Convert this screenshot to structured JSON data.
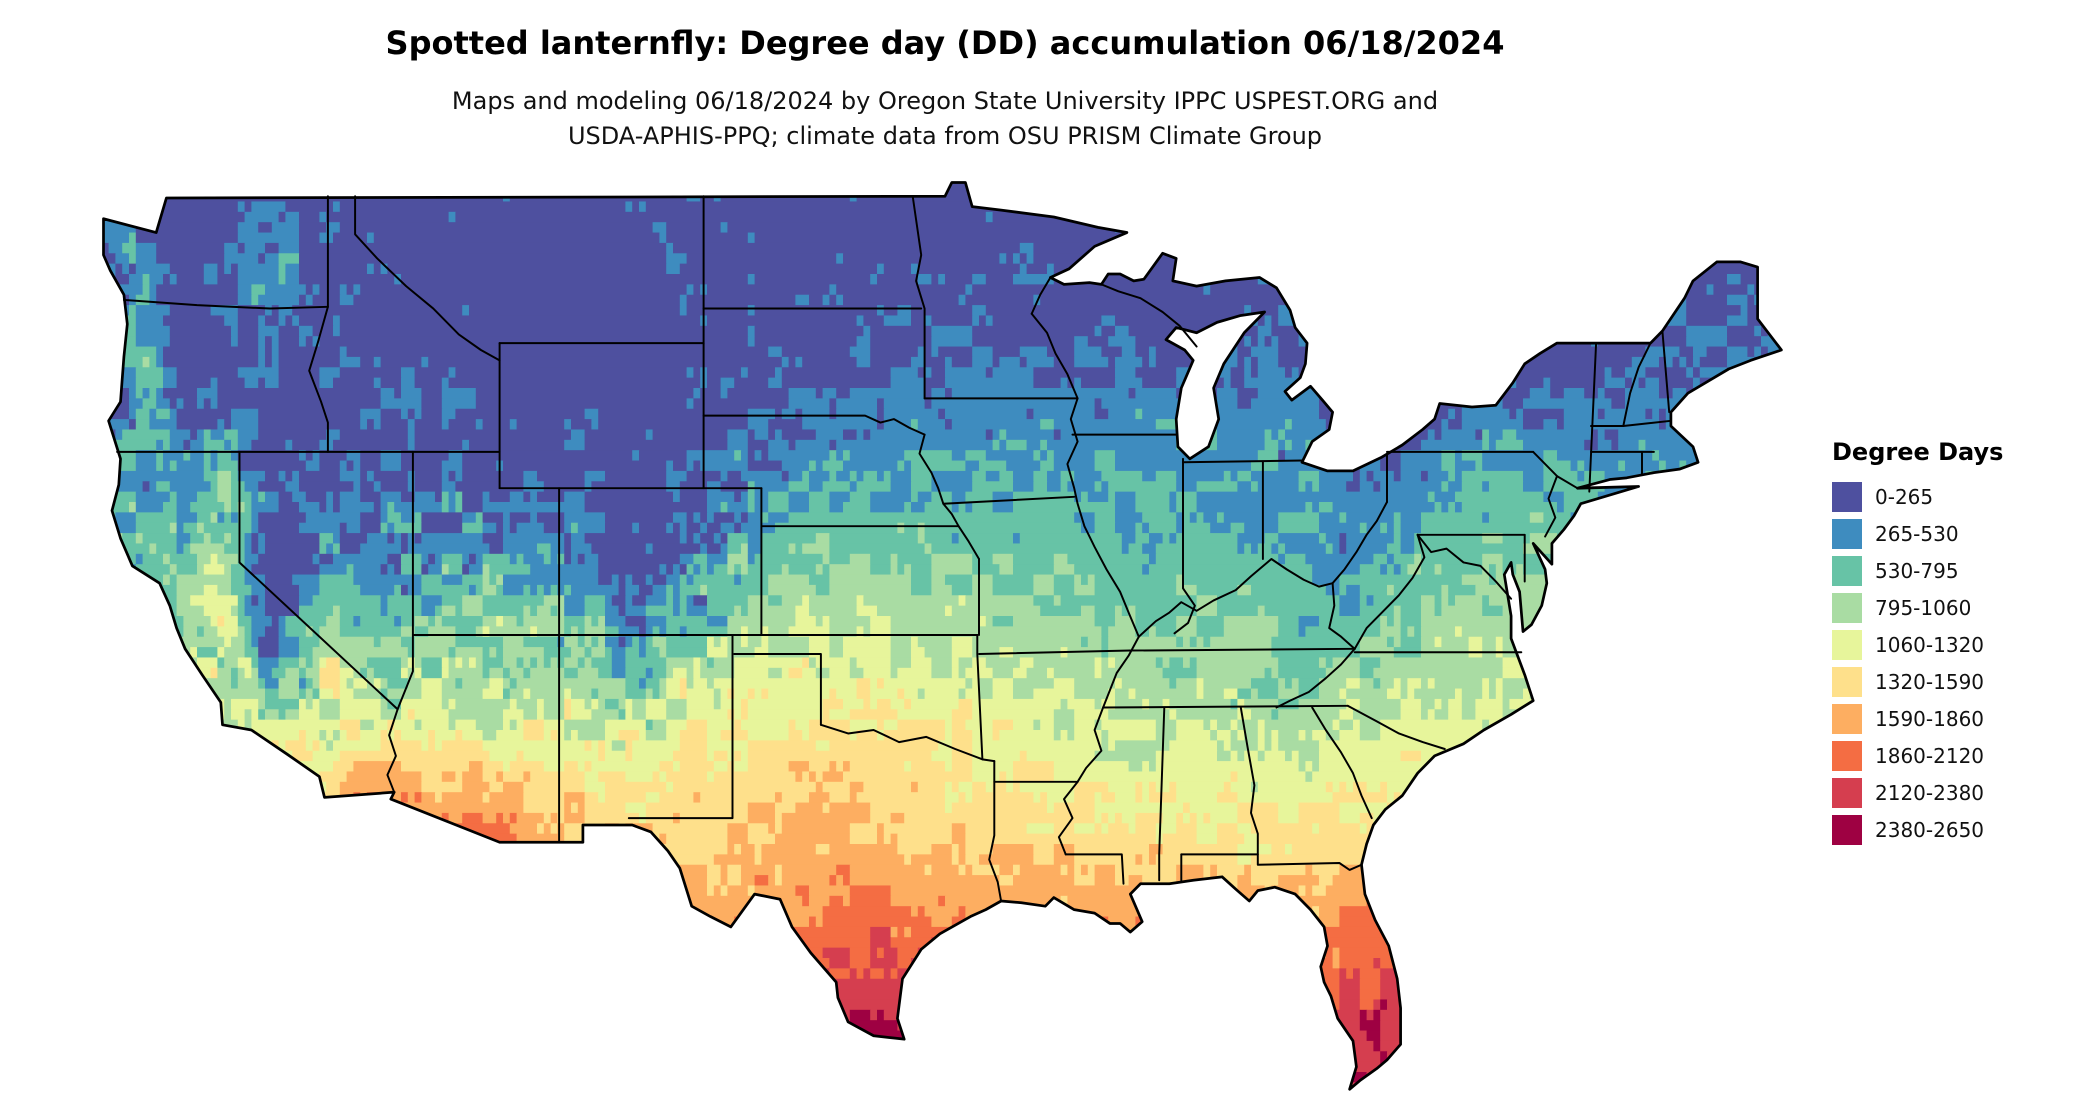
{
  "header": {
    "title": "Spotted lanternfly: Degree day (DD) accumulation 06/18/2024",
    "subtitle_line1": "Maps and modeling 06/18/2024 by Oregon State University IPPC USPEST.ORG and",
    "subtitle_line2": "USDA-APHIS-PPQ; climate data from OSU PRISM Climate Group"
  },
  "legend": {
    "title": "Degree Days",
    "items": [
      {
        "label": "0-265",
        "color": "#4e509f"
      },
      {
        "label": "265-530",
        "color": "#3e8cbf"
      },
      {
        "label": "530-795",
        "color": "#67c3a6"
      },
      {
        "label": "795-1060",
        "color": "#a9dca3"
      },
      {
        "label": "1060-1320",
        "color": "#e7f59b"
      },
      {
        "label": "1320-1590",
        "color": "#fee08b"
      },
      {
        "label": "1590-1860",
        "color": "#fdae61"
      },
      {
        "label": "1860-2120",
        "color": "#f46d43"
      },
      {
        "label": "2120-2380",
        "color": "#d53e4f"
      },
      {
        "label": "2380-2650",
        "color": "#9e0142"
      }
    ]
  },
  "map": {
    "depicts": "Contiguous United States choropleth raster of spotted lanternfly degree-day accumulation with state borders",
    "min_bin": 0,
    "max_bin": 2650,
    "border_color": "#000000",
    "background": "#ffffff"
  }
}
